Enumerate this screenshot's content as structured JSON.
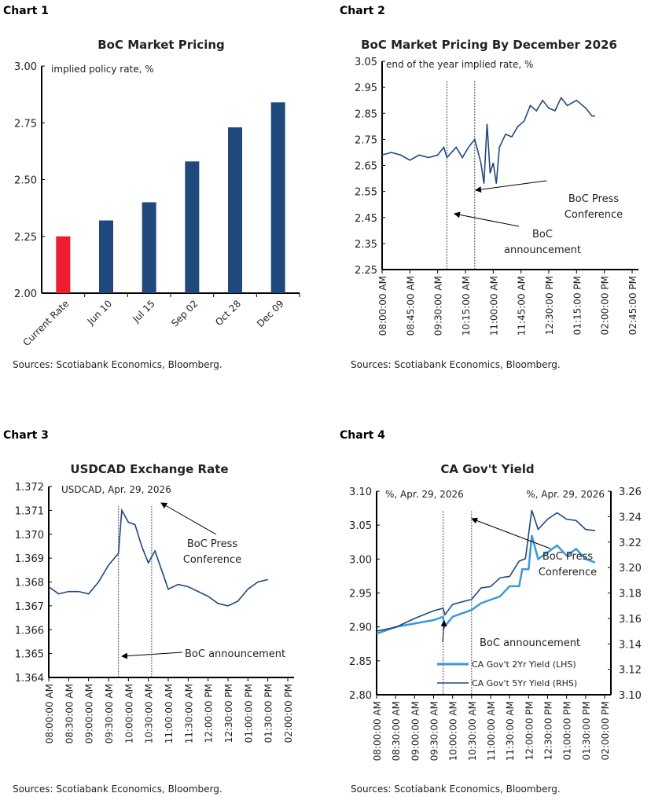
{
  "colors": {
    "navy": "#1f497d",
    "red": "#ed1c2e",
    "light": "#3a9ad9"
  },
  "panels": [
    {
      "label": "Chart 1"
    },
    {
      "label": "Chart 2"
    },
    {
      "label": "Chart 3"
    },
    {
      "label": "Chart 4"
    }
  ],
  "chart_data": [
    {
      "type": "bar",
      "title": "BoC Market Pricing",
      "ylabel": "implied policy rate, %",
      "ylim": [
        2.0,
        3.0
      ],
      "yticks": [
        "2.00",
        "2.25",
        "2.50",
        "2.75",
        "3.00"
      ],
      "categories": [
        "Current Rate",
        "Jun 10",
        "Jul 15",
        "Sep 02",
        "Oct 28",
        "Dec 09"
      ],
      "values": [
        2.25,
        2.32,
        2.4,
        2.58,
        2.73,
        2.84
      ],
      "bar_colors": [
        "red",
        "navy",
        "navy",
        "navy",
        "navy",
        "navy"
      ],
      "source": "Sources: Scotiabank Economics, Bloomberg."
    },
    {
      "type": "line",
      "title": "BoC Market Pricing By December 2026",
      "ylabel": "end of the year implied rate, %",
      "ylim": [
        2.25,
        3.05
      ],
      "yticks": [
        "2.25",
        "2.35",
        "2.45",
        "2.55",
        "2.65",
        "2.75",
        "2.85",
        "2.95",
        "3.05"
      ],
      "xticks": [
        "08:00:00 AM",
        "08:45:00 AM",
        "09:30:00 AM",
        "10:15:00 AM",
        "11:00:00 AM",
        "11:45:00 AM",
        "12:30:00 PM",
        "01:15:00 PM",
        "02:00:00 PM",
        "02:45:00 PM"
      ],
      "events": [
        {
          "time": "09:45",
          "label": "BoC announcement"
        },
        {
          "time": "10:30",
          "label": "BoC Press Conference"
        }
      ],
      "series": [
        {
          "color": "navy",
          "x": [
            "08:00",
            "08:15",
            "08:30",
            "08:45",
            "09:00",
            "09:15",
            "09:30",
            "09:40",
            "09:45",
            "10:00",
            "10:10",
            "10:20",
            "10:30",
            "10:40",
            "10:45",
            "10:50",
            "10:55",
            "11:00",
            "11:05",
            "11:10",
            "11:20",
            "11:30",
            "11:40",
            "11:50",
            "12:00",
            "12:10",
            "12:20",
            "12:30",
            "12:40",
            "12:50",
            "13:00",
            "13:15",
            "13:30",
            "13:40",
            "13:45"
          ],
          "y": [
            2.69,
            2.7,
            2.69,
            2.67,
            2.69,
            2.68,
            2.69,
            2.72,
            2.68,
            2.72,
            2.68,
            2.72,
            2.75,
            2.66,
            2.58,
            2.81,
            2.62,
            2.66,
            2.58,
            2.72,
            2.77,
            2.76,
            2.8,
            2.82,
            2.88,
            2.86,
            2.9,
            2.87,
            2.86,
            2.91,
            2.88,
            2.9,
            2.87,
            2.84,
            2.84
          ]
        }
      ],
      "source": "Sources: Scotiabank Economics, Bloomberg."
    },
    {
      "type": "line",
      "title": "USDCAD Exchange Rate",
      "ylabel": "USDCAD, Apr. 29, 2026",
      "ylim": [
        1.364,
        1.372
      ],
      "yticks": [
        "1.364",
        "1.365",
        "1.366",
        "1.367",
        "1.368",
        "1.369",
        "1.370",
        "1.371",
        "1.372"
      ],
      "xticks": [
        "08:00:00 AM",
        "08:30:00 AM",
        "09:00:00 AM",
        "09:30:00 AM",
        "10:00:00 AM",
        "10:30:00 AM",
        "11:00:00 AM",
        "11:30:00 AM",
        "12:00:00 PM",
        "12:30:00 PM",
        "01:00:00 PM",
        "01:30:00 PM",
        "02:00:00 PM"
      ],
      "events": [
        {
          "time": "09:45",
          "label": "BoC announcement"
        },
        {
          "time": "10:35",
          "label": "BoC Press Conference"
        }
      ],
      "series": [
        {
          "color": "navy",
          "x": [
            "08:00",
            "08:15",
            "08:30",
            "08:45",
            "09:00",
            "09:15",
            "09:30",
            "09:45",
            "09:50",
            "10:00",
            "10:10",
            "10:20",
            "10:30",
            "10:40",
            "10:50",
            "11:00",
            "11:15",
            "11:30",
            "11:45",
            "12:00",
            "12:15",
            "12:30",
            "12:45",
            "13:00",
            "13:15",
            "13:30"
          ],
          "y": [
            1.3678,
            1.3675,
            1.3676,
            1.3676,
            1.3675,
            1.368,
            1.3687,
            1.3692,
            1.371,
            1.3705,
            1.3704,
            1.3695,
            1.3688,
            1.3693,
            1.3685,
            1.3677,
            1.3679,
            1.3678,
            1.3676,
            1.3674,
            1.3671,
            1.367,
            1.3672,
            1.3677,
            1.368,
            1.3681
          ]
        }
      ],
      "source": "Sources: Scotiabank Economics, Bloomberg."
    },
    {
      "type": "line",
      "title": "CA Gov't Yield",
      "ylabel": "%, Apr. 29, 2026",
      "ylabel_right": "%, Apr. 29, 2026",
      "ylim": [
        2.8,
        3.1
      ],
      "ylim_right": [
        3.1,
        3.26
      ],
      "yticks": [
        "2.80",
        "2.85",
        "2.90",
        "2.95",
        "3.00",
        "3.05",
        "3.10"
      ],
      "yticks_right": [
        "3.10",
        "3.12",
        "3.14",
        "3.16",
        "3.18",
        "3.20",
        "3.22",
        "3.24",
        "3.26"
      ],
      "xticks": [
        "08:00:00 AM",
        "08:30:00 AM",
        "09:00:00 AM",
        "09:30:00 AM",
        "10:00:00 AM",
        "10:30:00 AM",
        "11:00:00 AM",
        "11:30:00 AM",
        "12:00:00 PM",
        "12:30:00 PM",
        "01:00:00 PM",
        "01:30:00 PM",
        "02:00:00 PM"
      ],
      "events": [
        {
          "time": "09:45",
          "label": "BoC announcement"
        },
        {
          "time": "10:30",
          "label": "BoC Press Conference"
        }
      ],
      "series": [
        {
          "name": "CA Gov't 2Yr Yield (LHS)",
          "color": "light",
          "axis": "left",
          "x": [
            "08:00",
            "08:30",
            "09:00",
            "09:30",
            "09:45",
            "09:47",
            "10:00",
            "10:30",
            "10:45",
            "11:00",
            "11:15",
            "11:30",
            "11:45",
            "11:50",
            "12:00",
            "12:05",
            "12:15",
            "12:30",
            "12:45",
            "13:00",
            "13:15",
            "13:30",
            "13:45"
          ],
          "y": [
            2.89,
            2.9,
            2.905,
            2.91,
            2.915,
            2.9,
            2.915,
            2.925,
            2.935,
            2.94,
            2.945,
            2.96,
            2.96,
            2.985,
            2.985,
            3.035,
            3.0,
            3.01,
            3.02,
            3.005,
            3.015,
            3.0,
            2.995
          ]
        },
        {
          "name": "CA Gov't 5Yr Yield (RHS)",
          "color": "navy",
          "axis": "right",
          "x": [
            "08:00",
            "08:30",
            "09:00",
            "09:30",
            "09:45",
            "09:48",
            "10:00",
            "10:30",
            "10:45",
            "11:00",
            "11:15",
            "11:30",
            "11:45",
            "11:55",
            "12:05",
            "12:15",
            "12:30",
            "12:45",
            "13:00",
            "13:15",
            "13:30",
            "13:45"
          ],
          "y": [
            3.15,
            3.153,
            3.16,
            3.166,
            3.168,
            3.163,
            3.171,
            3.175,
            3.184,
            3.185,
            3.192,
            3.193,
            3.205,
            3.207,
            3.245,
            3.23,
            3.238,
            3.243,
            3.238,
            3.237,
            3.23,
            3.229
          ]
        }
      ],
      "source": "Sources: Scotiabank Economics, Bloomberg."
    }
  ]
}
